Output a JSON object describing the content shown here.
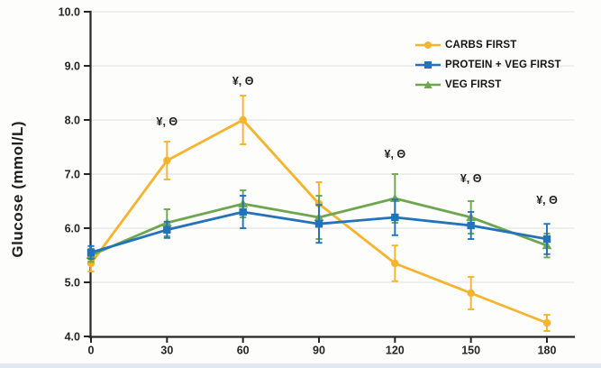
{
  "chart_data": {
    "type": "line",
    "title": "",
    "xlabel": "",
    "ylabel": "Glucose (mmol/L)",
    "x": [
      0,
      30,
      60,
      90,
      120,
      150,
      180
    ],
    "xlim": [
      0,
      180
    ],
    "ylim": [
      4.0,
      10.0
    ],
    "ytick_step": 1.0,
    "grid": "horizontal",
    "legend_position": "top-right",
    "series": [
      {
        "name": "CARBS FIRST",
        "color": "#F5B32E",
        "marker": "circle",
        "values": [
          5.35,
          7.25,
          8.0,
          6.45,
          5.35,
          4.8,
          4.25
        ],
        "errors": [
          0.15,
          0.35,
          0.45,
          0.4,
          0.33,
          0.3,
          0.15
        ]
      },
      {
        "name": "PROTEIN + VEG FIRST",
        "color": "#2273B9",
        "marker": "square",
        "values": [
          5.55,
          5.97,
          6.3,
          6.08,
          6.2,
          6.05,
          5.8
        ],
        "errors": [
          0.12,
          0.15,
          0.3,
          0.35,
          0.33,
          0.25,
          0.28
        ]
      },
      {
        "name": "VEG FIRST",
        "color": "#6DA64F",
        "marker": "triangle",
        "values": [
          5.5,
          6.1,
          6.45,
          6.2,
          6.55,
          6.2,
          5.68
        ],
        "errors": [
          0.12,
          0.25,
          0.25,
          0.4,
          0.45,
          0.3,
          0.22
        ]
      }
    ],
    "annotations": [
      {
        "text": "¥, Θ",
        "x": 30,
        "y": 7.9
      },
      {
        "text": "¥, Θ",
        "x": 60,
        "y": 8.65
      },
      {
        "text": "¥, Θ",
        "x": 120,
        "y": 7.3
      },
      {
        "text": "¥, Θ",
        "x": 150,
        "y": 6.85
      },
      {
        "text": "¥, Θ",
        "x": 180,
        "y": 6.45
      }
    ]
  },
  "colors": {
    "axis": "#262626",
    "grid": "#eaeaea",
    "background": "#fdfdfc",
    "bottom_strip": "#dfe8f1"
  }
}
